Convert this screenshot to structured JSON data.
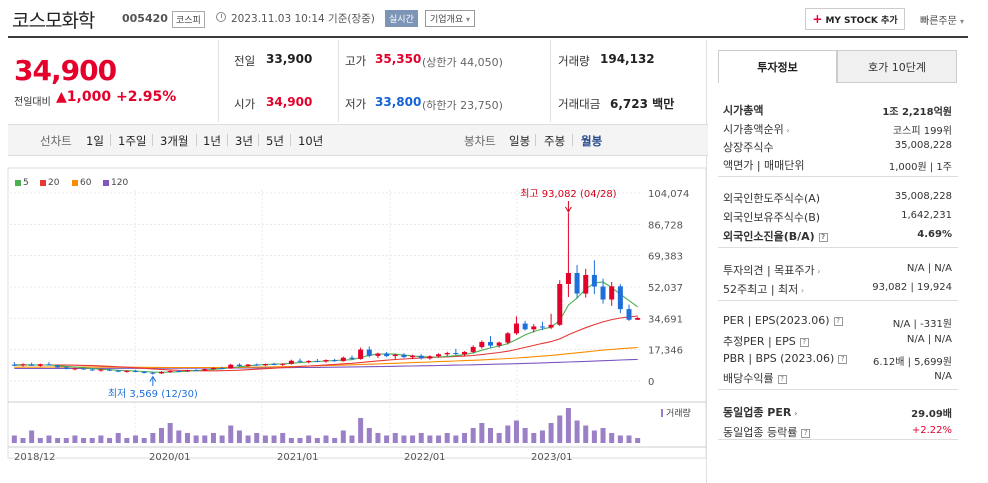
{
  "header": {
    "title": "코스모화학",
    "code": "005420",
    "market": "코스피",
    "as_of": "2023.11.03 10:14  기준(장중)",
    "realtime_badge": "실시간",
    "company_overview": "기업개요",
    "my_stock_button": "MY STOCK 추가",
    "quick_order": "빠른주문"
  },
  "price": {
    "current": "34,900",
    "change_label": "전일대비",
    "change_value": "1,000",
    "change_pct": "+2.95%"
  },
  "quote": {
    "prev_close_label": "전일",
    "prev_close": "33,900",
    "open_label": "시가",
    "open": "34,900",
    "high_label": "고가",
    "high": "35,350",
    "upper_limit": "(상한가 44,050)",
    "low_label": "저가",
    "low": "33,800",
    "lower_limit": "(하한가 23,750)",
    "volume_label": "거래량",
    "volume": "194,132",
    "amount_label": "거래대금",
    "amount": "6,723",
    "amount_unit": "백만"
  },
  "chart_tabs": {
    "line_label": "선차트",
    "line_periods": [
      "1일",
      "1주일",
      "3개월",
      "1년",
      "3년",
      "5년",
      "10년"
    ],
    "candle_label": "봉차트",
    "candle_periods": [
      "일봉",
      "주봉",
      "월봉"
    ],
    "selected": "월봉"
  },
  "colors": {
    "ma5": "#4caf50",
    "ma20": "#e53935",
    "ma60": "#fb8c00",
    "ma120": "#7e57c2",
    "up": "#e4002b",
    "down": "#1e6fd9",
    "volume": "#9b7fc7"
  },
  "chart_data": {
    "type": "candlestick",
    "legend": [
      "5",
      "20",
      "60",
      "120"
    ],
    "y_ticks": [
      "104,074",
      "86,728",
      "69,383",
      "52,037",
      "34,691",
      "17,346",
      "0"
    ],
    "ylim": [
      0,
      104074
    ],
    "x_labels": [
      "2018/12",
      "2020/01",
      "2021/01",
      "2022/01",
      "2023/01"
    ],
    "high_annotation": "최고 93,082 (04/28)",
    "low_annotation": "최저 3,569 (12/30)",
    "volume_label": "거래량",
    "candles": [
      [
        9000,
        10500,
        8200,
        8800
      ],
      [
        8800,
        9800,
        8000,
        9200
      ],
      [
        9200,
        10200,
        8500,
        8400
      ],
      [
        8400,
        9600,
        7900,
        9300
      ],
      [
        9300,
        10400,
        8600,
        8700
      ],
      [
        8700,
        9200,
        7200,
        7500
      ],
      [
        7500,
        8100,
        6400,
        6700
      ],
      [
        6700,
        7400,
        5900,
        7000
      ],
      [
        7000,
        7600,
        6200,
        6400
      ],
      [
        6400,
        7000,
        5600,
        5900
      ],
      [
        5900,
        6600,
        5200,
        6300
      ],
      [
        6300,
        6900,
        5500,
        5700
      ],
      [
        5700,
        6200,
        4900,
        5200
      ],
      [
        5200,
        5900,
        4600,
        5600
      ],
      [
        5600,
        6200,
        4800,
        5000
      ],
      [
        5000,
        5600,
        4200,
        4600
      ],
      [
        4600,
        5100,
        3569,
        4200
      ],
      [
        4200,
        5400,
        3900,
        5000
      ],
      [
        5000,
        5900,
        4600,
        5500
      ],
      [
        5500,
        6100,
        5000,
        5300
      ],
      [
        5300,
        6300,
        5000,
        6000
      ],
      [
        6000,
        6600,
        5500,
        5800
      ],
      [
        5800,
        6800,
        5500,
        6600
      ],
      [
        6600,
        7600,
        6200,
        7200
      ],
      [
        7200,
        7800,
        6400,
        6900
      ],
      [
        6900,
        9500,
        6700,
        9000
      ],
      [
        9000,
        9800,
        7900,
        8300
      ],
      [
        8300,
        9400,
        7800,
        9100
      ],
      [
        9100,
        9700,
        8400,
        8700
      ],
      [
        8700,
        9600,
        8200,
        9400
      ],
      [
        9400,
        10100,
        8700,
        9000
      ],
      [
        9000,
        9800,
        8300,
        9500
      ],
      [
        9500,
        11800,
        9100,
        11200
      ],
      [
        11200,
        12400,
        10200,
        10700
      ],
      [
        10700,
        11500,
        9800,
        11100
      ],
      [
        11100,
        12200,
        10400,
        10800
      ],
      [
        10800,
        12000,
        10100,
        11600
      ],
      [
        11600,
        12300,
        10600,
        11000
      ],
      [
        11000,
        13500,
        10700,
        12900
      ],
      [
        12900,
        14100,
        11600,
        12200
      ],
      [
        12200,
        18500,
        11800,
        17400
      ],
      [
        17400,
        19100,
        13100,
        13900
      ],
      [
        13900,
        15700,
        12700,
        15200
      ],
      [
        15200,
        16100,
        13200,
        13800
      ],
      [
        13800,
        14900,
        12100,
        14600
      ],
      [
        14600,
        15400,
        12800,
        13200
      ],
      [
        13200,
        14600,
        12100,
        14000
      ],
      [
        14000,
        14800,
        11900,
        12500
      ],
      [
        12500,
        14200,
        11800,
        13700
      ],
      [
        13700,
        15300,
        13000,
        14800
      ],
      [
        14800,
        16200,
        13600,
        15500
      ],
      [
        15500,
        17800,
        14200,
        14900
      ],
      [
        14900,
        16500,
        13700,
        16100
      ],
      [
        16100,
        19800,
        15200,
        18800
      ],
      [
        18800,
        22500,
        17900,
        21600
      ],
      [
        21600,
        24800,
        18400,
        19600
      ],
      [
        19600,
        21800,
        18500,
        21300
      ],
      [
        21300,
        27100,
        20200,
        26400
      ],
      [
        26400,
        35800,
        25600,
        31800
      ],
      [
        31800,
        33300,
        27900,
        28600
      ],
      [
        28600,
        31500,
        26900,
        30200
      ],
      [
        30200,
        32800,
        28200,
        29600
      ],
      [
        29600,
        37200,
        28700,
        31100
      ],
      [
        31100,
        55800,
        30400,
        53700
      ],
      [
        53700,
        93082,
        46500,
        59800
      ],
      [
        59800,
        64200,
        45600,
        48400
      ],
      [
        48400,
        62100,
        46200,
        58700
      ],
      [
        58700,
        66800,
        48100,
        52300
      ],
      [
        52300,
        56700,
        42800,
        45100
      ],
      [
        45100,
        54800,
        41600,
        52400
      ],
      [
        52400,
        53600,
        37500,
        39800
      ],
      [
        39800,
        42300,
        33300,
        33900
      ],
      [
        33900,
        35350,
        33800,
        34900
      ]
    ],
    "ma5": [
      9000,
      8950,
      8900,
      8870,
      8850,
      8500,
      8100,
      7750,
      7300,
      6900,
      6500,
      6250,
      5950,
      5700,
      5550,
      5250,
      4950,
      4850,
      4900,
      5150,
      5450,
      5800,
      6100,
      6450,
      6800,
      7300,
      7850,
      8400,
      8800,
      9150,
      9350,
      9450,
      9800,
      10200,
      10500,
      10800,
      11050,
      11300,
      11600,
      11800,
      13000,
      14200,
      14900,
      15000,
      14900,
      14300,
      13900,
      13500,
      13200,
      13300,
      13600,
      14000,
      14600,
      15600,
      17000,
      18300,
      19400,
      20700,
      23000,
      25500,
      27400,
      28800,
      29800,
      33600,
      42000,
      46000,
      50800,
      54300,
      54800,
      51700,
      48000,
      44500,
      41000
    ],
    "ma20": [
      8800,
      8820,
      8850,
      8860,
      8870,
      8860,
      8820,
      8760,
      8660,
      8520,
      8340,
      8120,
      7880,
      7620,
      7330,
      7030,
      6720,
      6420,
      6160,
      5950,
      5800,
      5700,
      5650,
      5650,
      5700,
      5830,
      6000,
      6250,
      6520,
      6800,
      7100,
      7400,
      7700,
      8000,
      8300,
      8600,
      8900,
      9200,
      9500,
      9800,
      10200,
      10700,
      11100,
      11500,
      11900,
      12200,
      12500,
      12800,
      13000,
      13200,
      13400,
      13600,
      13800,
      14100,
      14600,
      15200,
      15800,
      16500,
      17500,
      18600,
      19700,
      20800,
      21800,
      23300,
      25600,
      27600,
      29500,
      31200,
      32700,
      34000,
      34900,
      35500,
      35900
    ],
    "ma60": [
      7600,
      7620,
      7640,
      7660,
      7680,
      7700,
      7710,
      7720,
      7720,
      7710,
      7700,
      7680,
      7660,
      7640,
      7610,
      7580,
      7550,
      7520,
      7500,
      7490,
      7480,
      7480,
      7490,
      7500,
      7520,
      7550,
      7590,
      7640,
      7700,
      7770,
      7850,
      7940,
      8040,
      8150,
      8270,
      8400,
      8530,
      8670,
      8810,
      8960,
      9120,
      9290,
      9460,
      9640,
      9820,
      10000,
      10180,
      10360,
      10540,
      10720,
      10900,
      11080,
      11270,
      11470,
      11690,
      11930,
      12180,
      12450,
      12760,
      13090,
      13440,
      13800,
      14170,
      14600,
      15100,
      15600,
      16100,
      16600,
      17100,
      17500,
      17900,
      18200,
      18500
    ],
    "ma120": [
      6900,
      6910,
      6920,
      6930,
      6940,
      6950,
      6960,
      6970,
      6980,
      6990,
      7000,
      7010,
      7020,
      7030,
      7040,
      7050,
      7060,
      7070,
      7080,
      7090,
      7100,
      7110,
      7130,
      7150,
      7170,
      7190,
      7210,
      7240,
      7270,
      7300,
      7330,
      7370,
      7410,
      7450,
      7500,
      7550,
      7600,
      7660,
      7720,
      7780,
      7850,
      7920,
      7990,
      8070,
      8150,
      8230,
      8310,
      8400,
      8490,
      8580,
      8680,
      8780,
      8880,
      8990,
      9100,
      9220,
      9340,
      9470,
      9600,
      9740,
      9880,
      10030,
      10180,
      10340,
      10510,
      10680,
      10860,
      11040,
      11230,
      11420,
      11600,
      11780,
      11950
    ],
    "volume": [
      3,
      2,
      5,
      2,
      3,
      2,
      2,
      3,
      2,
      2,
      3,
      2,
      4,
      2,
      3,
      2,
      4,
      6,
      8,
      5,
      4,
      3,
      3,
      4,
      3,
      7,
      5,
      3,
      4,
      3,
      3,
      4,
      2,
      2,
      3,
      2,
      3,
      2,
      5,
      3,
      10,
      6,
      4,
      3,
      4,
      3,
      3,
      4,
      3,
      3,
      4,
      3,
      4,
      6,
      8,
      6,
      4,
      7,
      9,
      6,
      4,
      5,
      8,
      11,
      14,
      9,
      7,
      5,
      6,
      4,
      3,
      3,
      2
    ]
  },
  "side_panel": {
    "tabs": [
      "투자정보",
      "호가 10단계"
    ],
    "rows": [
      {
        "label": "시가총액",
        "value": "1조 2,218억원",
        "bold": true
      },
      {
        "label": "시가총액순위",
        "value": "코스피  199위",
        "caret": true
      },
      {
        "label": "상장주식수",
        "value": "35,008,228"
      },
      {
        "label": "액면가 | 매매단위",
        "value": "1,000원  |  1주"
      },
      {
        "label": "외국인한도주식수(A)",
        "value": "35,008,228"
      },
      {
        "label": "외국인보유주식수(B)",
        "value": "1,642,231"
      },
      {
        "label": "외국인소진율(B/A)",
        "value": "4.69%",
        "bold": true,
        "info": true
      },
      {
        "label": "투자의견 | 목표주가",
        "value": "N/A  |  N/A",
        "caret": true
      },
      {
        "label": "52주최고 | 최저",
        "value": "93,082  |  19,924",
        "caret": true
      },
      {
        "label": "PER | EPS(2023.06)",
        "value": "N/A  |  -331원",
        "info": true
      },
      {
        "label": "추정PER | EPS",
        "value": "N/A  |  N/A",
        "info": true
      },
      {
        "label": "PBR | BPS (2023.06)",
        "value": "6.12배  |  5,699원",
        "info": true
      },
      {
        "label": "배당수익률",
        "value": "N/A",
        "info": true
      },
      {
        "label": "동일업종 PER",
        "value": "29.09배",
        "bold": true,
        "caret": true
      },
      {
        "label": "동일업종 등락률",
        "value": "+2.22%",
        "red": true,
        "info": true
      }
    ]
  }
}
